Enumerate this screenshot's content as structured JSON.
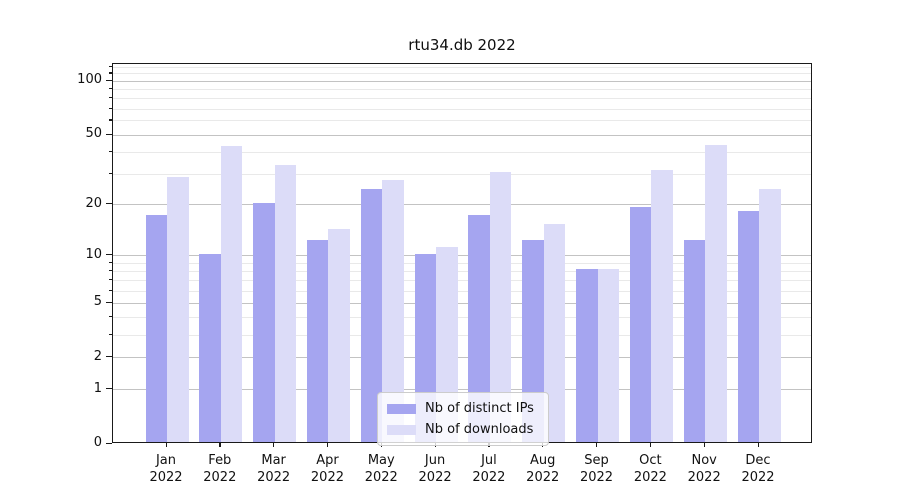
{
  "figure": {
    "title": "rtu34.db 2022"
  },
  "chart_data": {
    "type": "bar",
    "title": "rtu34.db 2022",
    "categories": [
      "Jan 2022",
      "Feb 2022",
      "Mar 2022",
      "Apr 2022",
      "May 2022",
      "Jun 2022",
      "Jul 2022",
      "Aug 2022",
      "Sep 2022",
      "Oct 2022",
      "Nov 2022",
      "Dec 2022"
    ],
    "series": [
      {
        "name": "Nb of distinct IPs",
        "color": "#a5a5f0",
        "values": [
          17,
          10,
          20,
          12,
          24,
          10,
          17,
          12,
          8,
          19,
          12,
          18
        ]
      },
      {
        "name": "Nb of downloads",
        "color": "#dcdcf8",
        "values": [
          28,
          42,
          33,
          14,
          27,
          11,
          30,
          15,
          8,
          31,
          43,
          24
        ]
      }
    ],
    "ylabel": "",
    "xlabel": "",
    "yscale": "log1p",
    "ylim": [
      0,
      125
    ],
    "y_tick_values": [
      100,
      50,
      20,
      10,
      5,
      2,
      1,
      0
    ],
    "y_tick_labels": [
      "100",
      "50",
      "20",
      "10",
      "5",
      "2",
      "1",
      "0"
    ],
    "y_minor_gridlines": [
      3,
      4,
      6,
      7,
      8,
      9,
      30,
      40,
      60,
      70,
      80,
      90,
      110,
      120
    ],
    "grid": true,
    "legend_position": "lower center",
    "colors": {
      "major_grid": "#c3c3c3",
      "minor_grid": "#e9e9e9",
      "spine": "#1a1a1a"
    }
  }
}
